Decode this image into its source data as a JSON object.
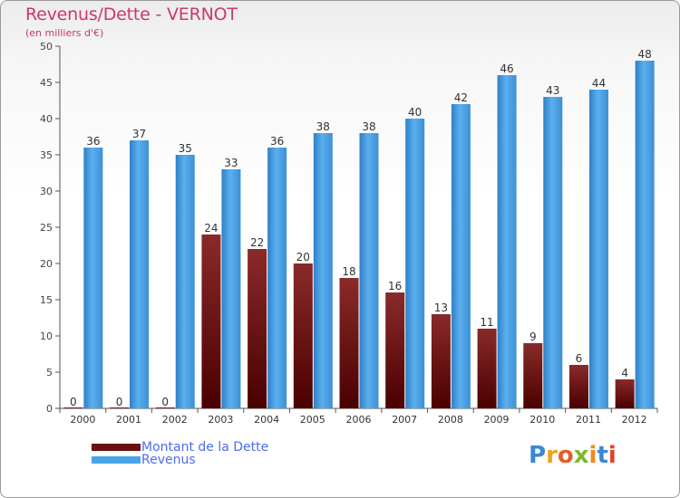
{
  "title": "Revenus/Dette - VERNOT",
  "subtitle": "(en milliers d'€)",
  "colors": {
    "dette": "#7a1a1a",
    "revenus": "#3d97db",
    "title": "#c9386e",
    "legend_text": "#4b6cf0"
  },
  "legend": [
    {
      "label": "Montant de la Dette",
      "color": "#6b0f0f"
    },
    {
      "label": "Revenus",
      "color": "#4aa3e6"
    }
  ],
  "logo": {
    "text": "Proxiti"
  },
  "chart_data": {
    "type": "bar",
    "title": "Revenus/Dette - VERNOT",
    "ylabel": "(en milliers d'€)",
    "ylim": [
      0,
      50
    ],
    "yticks": [
      0,
      5,
      10,
      15,
      20,
      25,
      30,
      35,
      40,
      45,
      50
    ],
    "categories": [
      "2000",
      "2001",
      "2002",
      "2003",
      "2004",
      "2005",
      "2006",
      "2007",
      "2008",
      "2009",
      "2010",
      "2011",
      "2012"
    ],
    "series": [
      {
        "name": "Montant de la Dette",
        "values": [
          0,
          0,
          0,
          24,
          22,
          20,
          18,
          16,
          13,
          11,
          9,
          6,
          4
        ]
      },
      {
        "name": "Revenus",
        "values": [
          36,
          37,
          35,
          33,
          36,
          38,
          38,
          40,
          42,
          46,
          43,
          44,
          48
        ]
      }
    ],
    "grid": false,
    "legend_position": "bottom-left"
  }
}
